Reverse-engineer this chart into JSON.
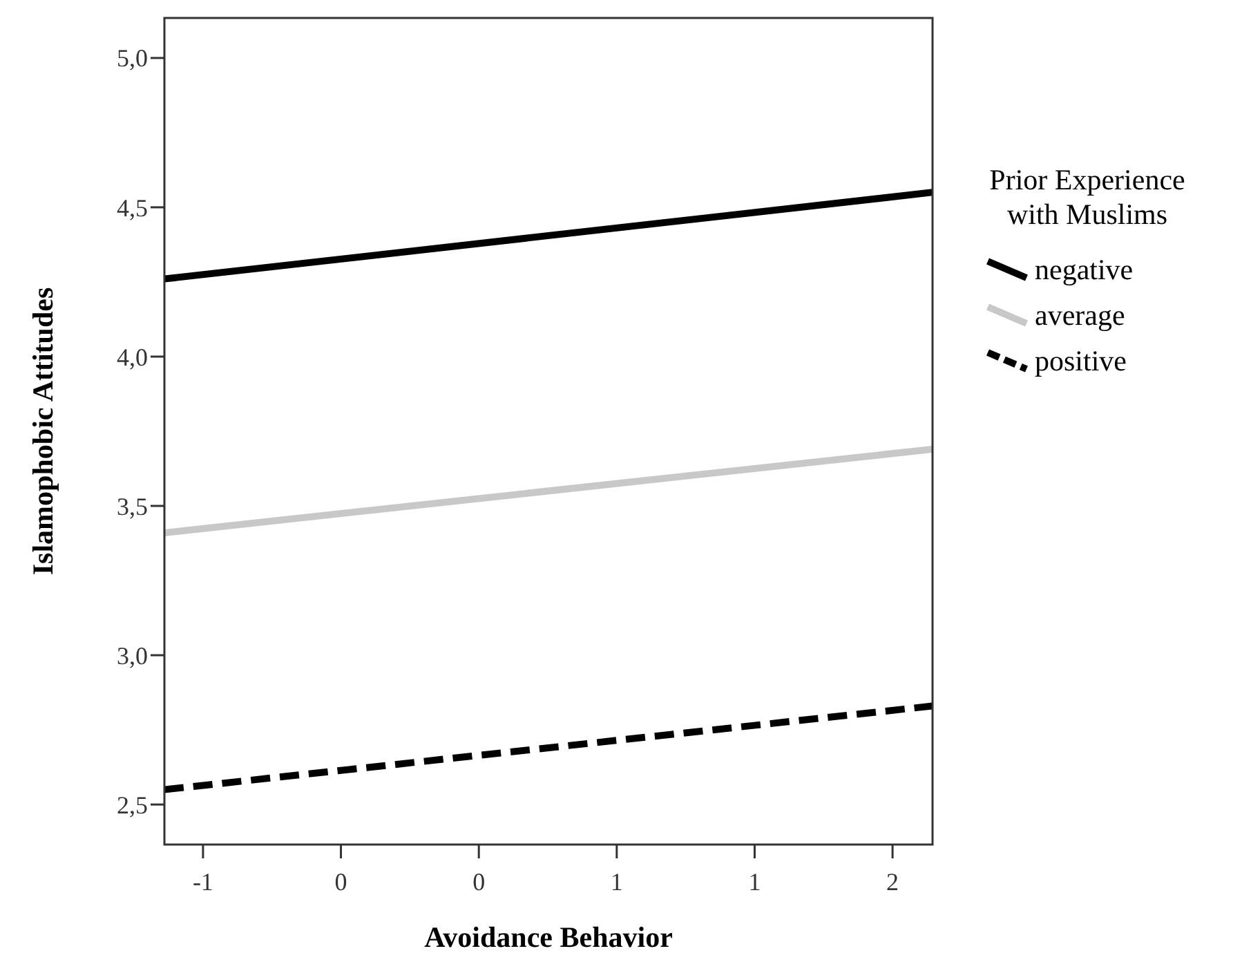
{
  "chart_data": {
    "type": "line",
    "xlabel": "Avoidance Behavior",
    "ylabel": "Islamophobic Attitudes",
    "legend_title": "Prior Experience with Muslims",
    "legend": "right",
    "marker": "none",
    "grid": false,
    "xlim": [
      -1.14,
      1.645
    ],
    "ylim": [
      2.366,
      5.134
    ],
    "xticks": [
      {
        "value": -1,
        "label": "-1"
      },
      {
        "value": -0.5,
        "label": "0"
      },
      {
        "value": 0,
        "label": "0"
      },
      {
        "value": 0.5,
        "label": "1"
      },
      {
        "value": 1,
        "label": "1"
      },
      {
        "value": 1.5,
        "label": "2"
      }
    ],
    "yticks": [
      {
        "value": 2.5,
        "label": "2,5"
      },
      {
        "value": 3,
        "label": "3,0"
      },
      {
        "value": 3.5,
        "label": "3,5"
      },
      {
        "value": 4,
        "label": "4,0"
      },
      {
        "value": 4.5,
        "label": "4,5"
      },
      {
        "value": 5,
        "label": "5,0"
      }
    ],
    "x": [
      -1.14,
      1.645
    ],
    "series": [
      {
        "name": "negative",
        "color": "#000000",
        "values": [
          4.26,
          4.55
        ],
        "line_style": "solid"
      },
      {
        "name": "average",
        "color": "#c8c8c8",
        "values": [
          3.41,
          3.69
        ],
        "line_style": "solid"
      },
      {
        "name": "positive",
        "color": "#000000",
        "values": [
          2.55,
          2.83
        ],
        "line_style": "dashed"
      }
    ]
  }
}
